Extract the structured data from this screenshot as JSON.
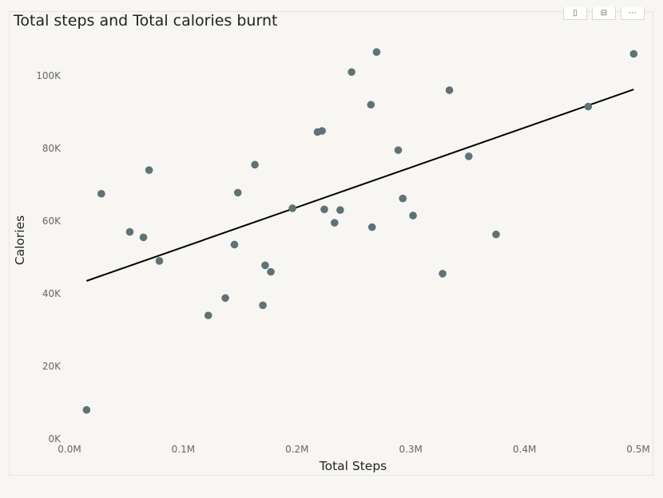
{
  "toolbar": {
    "items": [
      {
        "icon": "pin-icon",
        "glyph": "▯"
      },
      {
        "icon": "focus-mode-icon",
        "glyph": "⊟"
      },
      {
        "icon": "more-options-icon",
        "glyph": "⋯"
      }
    ]
  },
  "chart_data": {
    "type": "scatter",
    "title": "Total steps and Total calories burnt",
    "xlabel": "Total Steps",
    "ylabel": "Calories",
    "xlim": [
      0,
      0.5
    ],
    "ylim": [
      0,
      110
    ],
    "x_unit": "M",
    "y_unit": "K",
    "x_ticks": [
      0.0,
      0.1,
      0.2,
      0.3,
      0.4,
      0.5
    ],
    "x_tick_labels": [
      "0.0M",
      "0.1M",
      "0.2M",
      "0.3M",
      "0.4M",
      "0.5M"
    ],
    "y_ticks": [
      0,
      20,
      40,
      60,
      80,
      100
    ],
    "y_tick_labels": [
      "0K",
      "20K",
      "40K",
      "60K",
      "80K",
      "100K"
    ],
    "grid": false,
    "point_color": "#5f7276",
    "trendline_color": "#000000",
    "trendline": {
      "x": [
        0.015,
        0.496
      ],
      "y": [
        43.5,
        96.2
      ]
    },
    "points": [
      {
        "x": 0.015,
        "y": 8.0
      },
      {
        "x": 0.028,
        "y": 67.5
      },
      {
        "x": 0.053,
        "y": 57.0
      },
      {
        "x": 0.065,
        "y": 55.5
      },
      {
        "x": 0.07,
        "y": 74.0
      },
      {
        "x": 0.079,
        "y": 49.0
      },
      {
        "x": 0.122,
        "y": 34.0
      },
      {
        "x": 0.137,
        "y": 38.8
      },
      {
        "x": 0.145,
        "y": 53.5
      },
      {
        "x": 0.148,
        "y": 67.8
      },
      {
        "x": 0.163,
        "y": 75.5
      },
      {
        "x": 0.17,
        "y": 36.8
      },
      {
        "x": 0.172,
        "y": 47.8
      },
      {
        "x": 0.177,
        "y": 46.0
      },
      {
        "x": 0.196,
        "y": 63.5
      },
      {
        "x": 0.218,
        "y": 84.5
      },
      {
        "x": 0.222,
        "y": 84.8
      },
      {
        "x": 0.224,
        "y": 63.2
      },
      {
        "x": 0.233,
        "y": 59.5
      },
      {
        "x": 0.238,
        "y": 63.0
      },
      {
        "x": 0.248,
        "y": 101.0
      },
      {
        "x": 0.265,
        "y": 92.0
      },
      {
        "x": 0.266,
        "y": 58.3
      },
      {
        "x": 0.27,
        "y": 106.5
      },
      {
        "x": 0.289,
        "y": 79.5
      },
      {
        "x": 0.293,
        "y": 66.2
      },
      {
        "x": 0.302,
        "y": 61.5
      },
      {
        "x": 0.328,
        "y": 45.5
      },
      {
        "x": 0.334,
        "y": 96.0
      },
      {
        "x": 0.351,
        "y": 77.8
      },
      {
        "x": 0.375,
        "y": 56.3
      },
      {
        "x": 0.456,
        "y": 91.5
      },
      {
        "x": 0.496,
        "y": 106.0
      }
    ]
  }
}
